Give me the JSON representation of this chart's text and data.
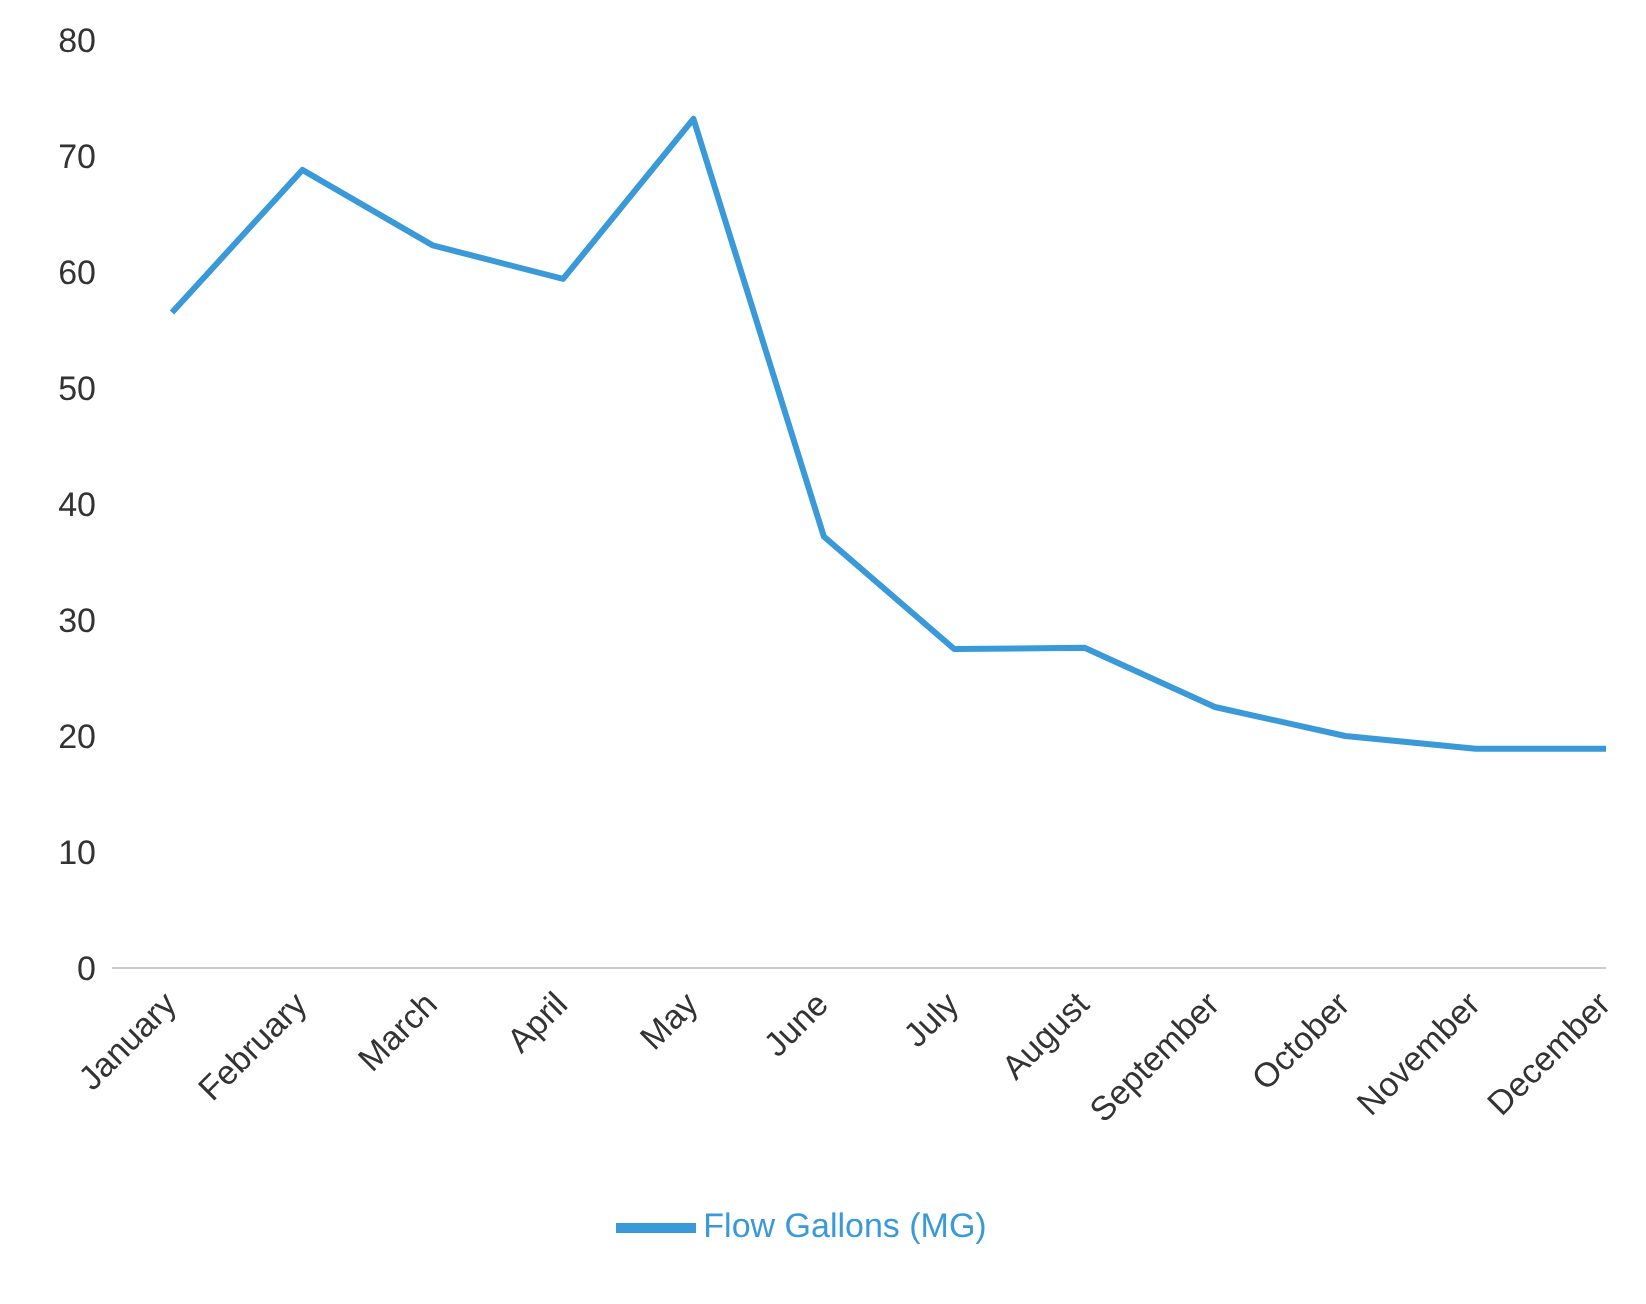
{
  "chart_data": {
    "type": "line",
    "categories": [
      "January",
      "February",
      "March",
      "April",
      "May",
      "June",
      "July",
      "August",
      "September",
      "October",
      "November",
      "December"
    ],
    "series": [
      {
        "name": "Flow Gallons (MG)",
        "color": "#3a9ad9",
        "values": [
          56.5,
          68.8,
          62.3,
          59.4,
          73.2,
          37.2,
          27.5,
          27.6,
          22.5,
          20,
          18.9,
          18.9
        ]
      }
    ],
    "ylim": [
      0,
      80
    ],
    "yticks": [
      0,
      10,
      20,
      30,
      40,
      50,
      60,
      70,
      80
    ],
    "legend": "bottom",
    "marker": "none",
    "line_style": "solid"
  }
}
